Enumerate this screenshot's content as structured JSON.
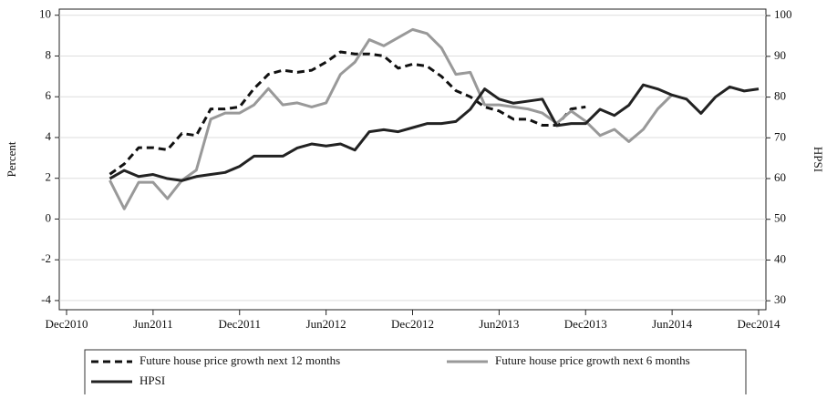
{
  "chart_data": {
    "type": "line",
    "x": [
      "2011-03",
      "2011-04",
      "2011-05",
      "2011-06",
      "2011-07",
      "2011-08",
      "2011-09",
      "2011-10",
      "2011-11",
      "2011-12",
      "2012-01",
      "2012-02",
      "2012-03",
      "2012-04",
      "2012-05",
      "2012-06",
      "2012-07",
      "2012-08",
      "2012-09",
      "2012-10",
      "2012-11",
      "2012-12",
      "2013-01",
      "2013-02",
      "2013-03",
      "2013-04",
      "2013-05",
      "2013-06",
      "2013-07",
      "2013-08",
      "2013-09",
      "2013-10",
      "2013-11",
      "2013-12",
      "2014-01",
      "2014-02",
      "2014-03",
      "2014-04",
      "2014-05",
      "2014-06",
      "2014-07",
      "2014-08",
      "2014-09",
      "2014-10",
      "2014-11",
      "2014-12"
    ],
    "series": [
      {
        "name": "Future house price growth next 12 months",
        "color": "#111111",
        "style": "dashed",
        "values": [
          2.2,
          2.7,
          3.5,
          3.5,
          3.4,
          4.2,
          4.1,
          5.4,
          5.4,
          5.5,
          6.4,
          7.1,
          7.3,
          7.2,
          7.3,
          7.7,
          8.2,
          8.1,
          8.1,
          8.0,
          7.4,
          7.6,
          7.5,
          7.0,
          6.3,
          6.0,
          5.5,
          5.3,
          4.9,
          4.9,
          4.6,
          4.6,
          5.4,
          5.5,
          null,
          null,
          null,
          null,
          null,
          null,
          null,
          null,
          null,
          null,
          null,
          null
        ]
      },
      {
        "name": "Future house price growth next 6 months",
        "color": "#999999",
        "style": "solid",
        "values": [
          1.9,
          0.5,
          1.8,
          1.8,
          1.0,
          1.9,
          2.4,
          4.9,
          5.2,
          5.2,
          5.6,
          6.4,
          5.6,
          5.7,
          5.5,
          5.7,
          7.1,
          7.7,
          8.8,
          8.5,
          8.9,
          9.3,
          9.1,
          8.4,
          7.1,
          7.2,
          5.6,
          5.6,
          5.5,
          5.4,
          5.2,
          4.7,
          5.3,
          4.8,
          4.1,
          4.4,
          3.8,
          4.4,
          5.4,
          6.1,
          null,
          null,
          null,
          null,
          null,
          null
        ]
      },
      {
        "name": "HPSI",
        "color": "#222222",
        "style": "solid",
        "axis": "y2",
        "values": [
          60,
          62,
          60.5,
          61,
          60,
          59.5,
          60.5,
          61,
          61.5,
          63,
          65.5,
          65.5,
          65.5,
          67.5,
          68.5,
          68,
          68.5,
          67,
          71.5,
          72,
          71.5,
          72.5,
          73.5,
          73.5,
          74,
          77,
          82,
          79.5,
          78.5,
          79,
          79.5,
          73,
          73.5,
          73.5,
          77,
          75.5,
          78,
          83,
          82,
          80.5,
          79.5,
          76,
          80,
          82.5,
          81.5,
          82
        ]
      }
    ],
    "y_label": "Percent",
    "y2_label": "HPSI",
    "xlim": [
      "2010-12",
      "2014-12"
    ],
    "xticks": [
      {
        "value": "2010-12",
        "label": "Dec2010"
      },
      {
        "value": "2011-06",
        "label": "Jun2011"
      },
      {
        "value": "2011-12",
        "label": "Dec2011"
      },
      {
        "value": "2012-06",
        "label": "Jun2012"
      },
      {
        "value": "2012-12",
        "label": "Dec2012"
      },
      {
        "value": "2013-06",
        "label": "Jun2013"
      },
      {
        "value": "2013-12",
        "label": "Dec2013"
      },
      {
        "value": "2014-06",
        "label": "Jun2014"
      },
      {
        "value": "2014-12",
        "label": "Dec2014"
      }
    ],
    "ylim": [
      -4.45,
      10.3
    ],
    "yticks": [
      -4,
      -2,
      0,
      2,
      4,
      6,
      8,
      10
    ],
    "y2lim": [
      27.8,
      101.6
    ],
    "y2ticks": [
      30,
      40,
      50,
      60,
      70,
      80,
      90,
      100
    ],
    "grid": true,
    "legend": "bottom"
  }
}
